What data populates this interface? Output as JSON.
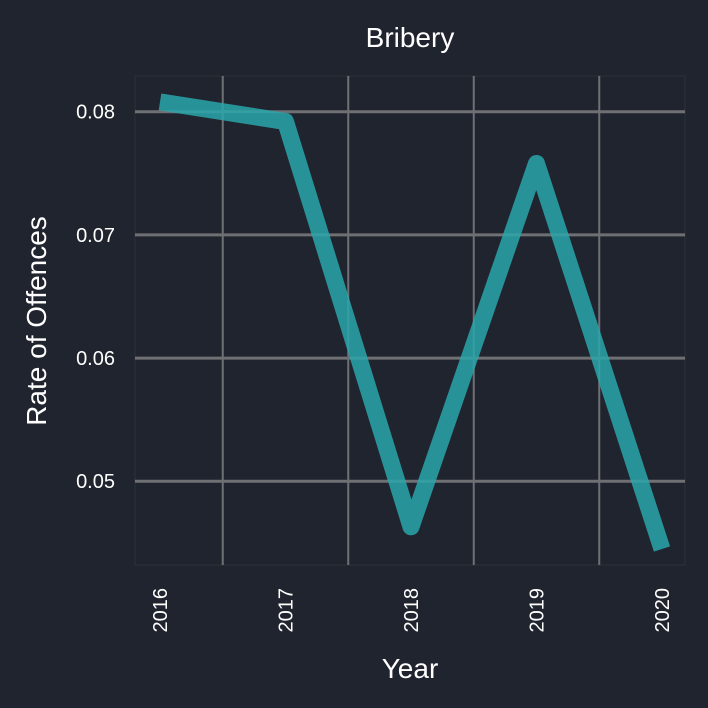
{
  "colors": {
    "background": "#20242e",
    "grid": "#6f7073",
    "line": "#2aa6ab",
    "text": "#ffffff"
  },
  "chart_data": {
    "type": "line",
    "title": "Bribery",
    "xlabel": "Year",
    "ylabel": "Rate of Offences",
    "categories": [
      "2016",
      "2017",
      "2018",
      "2019",
      "2020"
    ],
    "series": [
      {
        "values": [
          0.0808,
          0.0792,
          0.0463,
          0.0758,
          0.0445
        ]
      }
    ],
    "yticks": [
      0.05,
      0.06,
      0.07,
      0.08
    ],
    "ytick_labels": [
      "0.05",
      "0.06",
      "0.07",
      "0.08"
    ],
    "ylim": [
      0.0432,
      0.0829
    ],
    "grid": true,
    "legend": "none"
  }
}
